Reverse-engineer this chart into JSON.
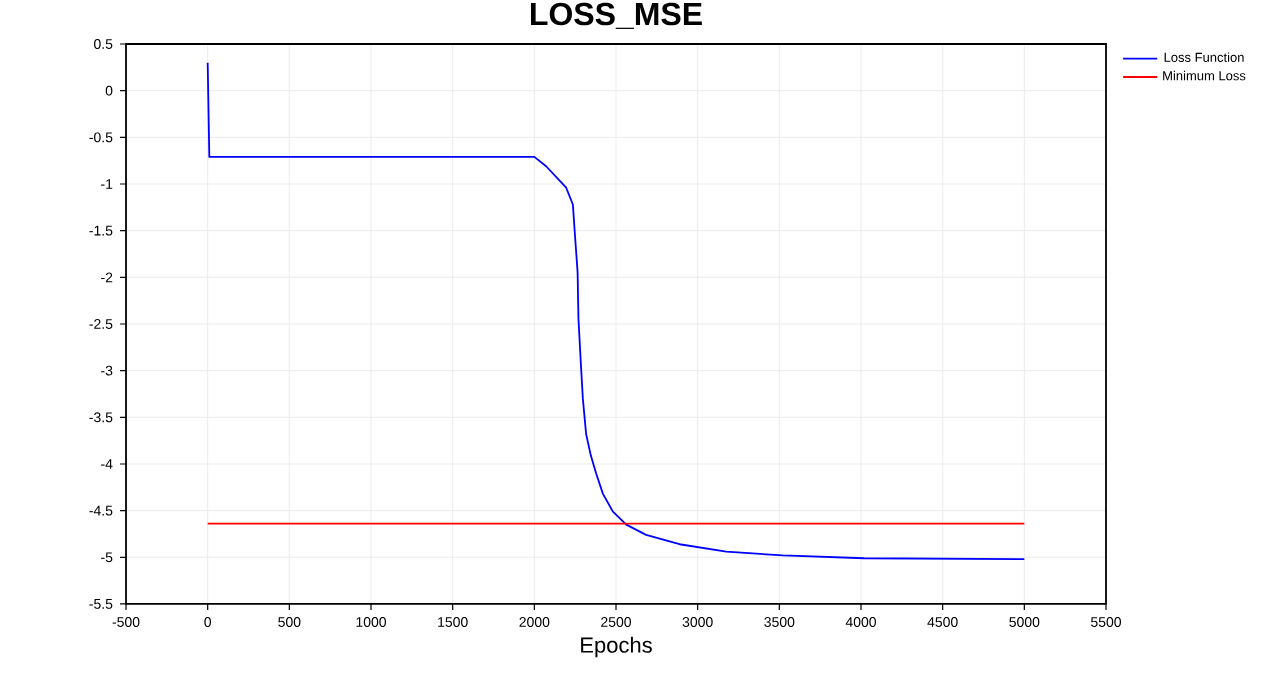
{
  "chart_data": {
    "type": "line",
    "title": "**LOSS_MSE**",
    "xlabel": "Epochs",
    "xlim": [
      -500,
      5500
    ],
    "xticks": [
      -500,
      0,
      500,
      1000,
      1500,
      2000,
      2500,
      3000,
      3500,
      4000,
      4500,
      5000,
      5500
    ],
    "ylim": [
      -5.5,
      0.5
    ],
    "yticks": [
      -5.5,
      -5,
      -4.5,
      -4,
      -3.5,
      -3,
      -2.5,
      -2,
      -1.5,
      -1,
      -0.5,
      0,
      0.5
    ],
    "grid": true,
    "legend": "top right",
    "marker": "none",
    "line_style": "solid",
    "series": [
      {
        "name": "Loss Function",
        "color": "#0000ff",
        "x": [
          0,
          10,
          2000,
          2072,
          2195,
          2236,
          2248,
          2265,
          2270,
          2285,
          2297,
          2317,
          2346,
          2378,
          2420,
          2481,
          2563,
          2684,
          2889,
          3175,
          3521,
          4019,
          5000
        ],
        "values": [
          0.3,
          -0.71,
          -0.71,
          -0.81,
          -1.04,
          -1.22,
          -1.53,
          -1.95,
          -2.44,
          -2.93,
          -3.3,
          -3.68,
          -3.91,
          -4.1,
          -4.32,
          -4.51,
          -4.65,
          -4.76,
          -4.86,
          -4.94,
          -4.98,
          -5.01,
          -5.02
        ]
      },
      {
        "name": "Minimum Loss",
        "color": "#ff0000",
        "x": [
          0,
          5000
        ],
        "values": [
          -4.64,
          -4.64
        ]
      }
    ]
  }
}
